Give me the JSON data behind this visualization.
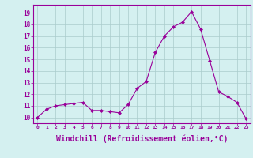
{
  "x": [
    0,
    1,
    2,
    3,
    4,
    5,
    6,
    7,
    8,
    9,
    10,
    11,
    12,
    13,
    14,
    15,
    16,
    17,
    18,
    19,
    20,
    21,
    22,
    23
  ],
  "y": [
    10.0,
    10.7,
    11.0,
    11.1,
    11.2,
    11.3,
    10.6,
    10.6,
    10.5,
    10.4,
    11.1,
    12.5,
    13.1,
    15.6,
    17.0,
    17.8,
    18.2,
    19.1,
    17.6,
    14.9,
    12.2,
    11.8,
    11.3,
    9.9
  ],
  "line_color": "#990099",
  "marker": "D",
  "marker_size": 2,
  "bg_color": "#d4f0f0",
  "grid_color": "#aacccc",
  "xlabel": "Windchill (Refroidissement éolien,°C)",
  "xlabel_fontsize": 7,
  "xtick_labels": [
    "0",
    "1",
    "2",
    "3",
    "4",
    "5",
    "6",
    "7",
    "8",
    "9",
    "10",
    "11",
    "12",
    "13",
    "14",
    "15",
    "16",
    "17",
    "18",
    "19",
    "20",
    "21",
    "22",
    "23"
  ],
  "ytick_labels": [
    "10",
    "11",
    "12",
    "13",
    "14",
    "15",
    "16",
    "17",
    "18",
    "19"
  ],
  "ylim": [
    9.5,
    19.7
  ],
  "xlim": [
    -0.5,
    23.5
  ]
}
